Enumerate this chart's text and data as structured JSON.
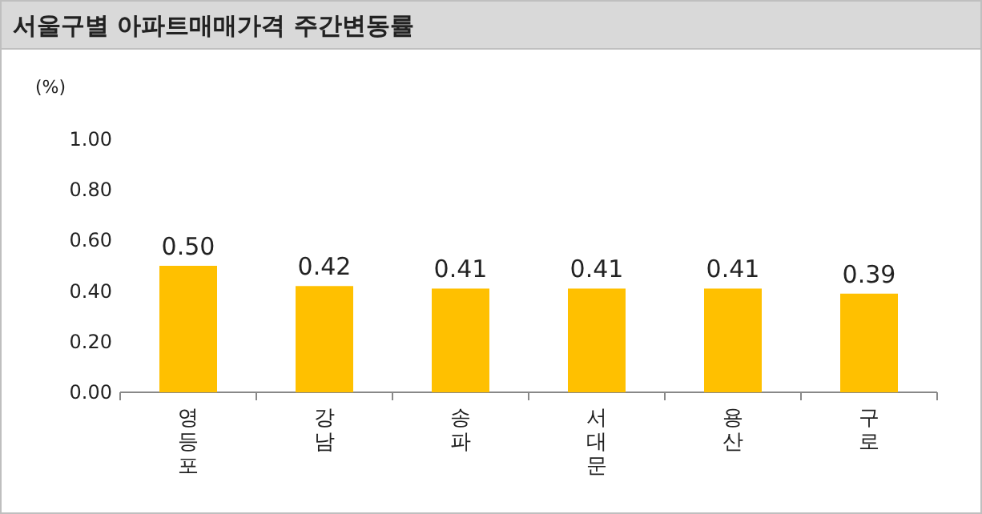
{
  "chart_data": {
    "type": "bar",
    "title": "서울구별 아파트매매가격 주간변동률",
    "ylabel": "(%)",
    "categories": [
      "영등포",
      "강남",
      "송파",
      "서대문",
      "용산",
      "구로"
    ],
    "values": [
      0.5,
      0.42,
      0.41,
      0.41,
      0.41,
      0.39
    ],
    "value_labels": [
      "0.50",
      "0.42",
      "0.41",
      "0.41",
      "0.41",
      "0.39"
    ],
    "color": "#ffc000",
    "ylim": [
      0,
      1
    ],
    "yticks": [
      {
        "value": 0,
        "label": "0.00"
      },
      {
        "value": 0.2,
        "label": "0.20"
      },
      {
        "value": 0.4,
        "label": "0.40"
      },
      {
        "value": 0.6,
        "label": "0.60"
      },
      {
        "value": 0.8,
        "label": "0.80"
      },
      {
        "value": 1,
        "label": "1.00"
      }
    ]
  }
}
